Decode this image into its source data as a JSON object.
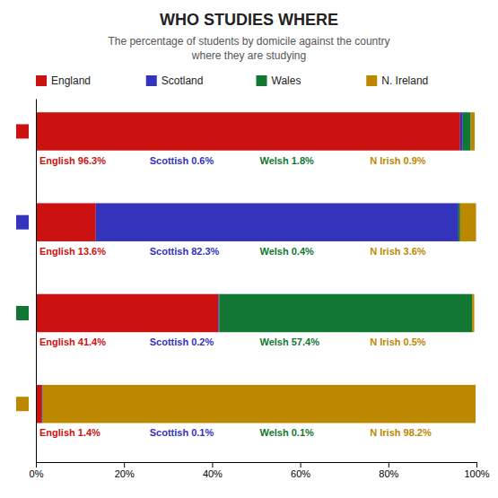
{
  "chart_data": {
    "type": "bar",
    "orientation": "horizontal",
    "stacked": true,
    "title": "WHO STUDIES WHERE",
    "subtitle": "The percentage of students by domicile against the country\nwhere they are studying",
    "categories": [
      null,
      null,
      null,
      null
    ],
    "series": [
      {
        "name": "England",
        "color": "#CC1111",
        "values": [
          96.3,
          13.6,
          41.4,
          1.4
        ],
        "value_labels": [
          "English 96.3%",
          "English 13.6%",
          "English 41.4%",
          "English 1.4%"
        ]
      },
      {
        "name": "Scotland",
        "color": "#3333BB",
        "values": [
          0.6,
          82.3,
          0.2,
          0.1
        ],
        "value_labels": [
          "Scottish 0.6%",
          "Scottish 82.3%",
          "Scottish 0.2%",
          "Scottish 0.1%"
        ]
      },
      {
        "name": "Wales",
        "color": "#117733",
        "values": [
          1.8,
          0.4,
          57.4,
          0.1
        ],
        "value_labels": [
          "Welsh 1.8%",
          "Welsh 0.4%",
          "Welsh 57.4%",
          "Welsh 0.1%"
        ]
      },
      {
        "name": "N. Ireland",
        "color": "#BB8800",
        "values": [
          0.9,
          3.6,
          0.5,
          98.2
        ],
        "value_labels": [
          "N Irish 0.9%",
          "N Irish 3.6%",
          "N Irish 0.5%",
          "N Irish 98.2%"
        ]
      }
    ],
    "xlim": [
      0,
      100
    ],
    "xticks": [
      {
        "value": 0,
        "label": "0%"
      },
      {
        "value": 20,
        "label": "20%"
      },
      {
        "value": 40,
        "label": "40%"
      },
      {
        "value": 60,
        "label": "60%"
      },
      {
        "value": 80,
        "label": "80%"
      },
      {
        "value": 100,
        "label": "100%"
      }
    ],
    "grid": false,
    "legend": "upper left",
    "data_labels": true,
    "tick_labels": "x"
  }
}
